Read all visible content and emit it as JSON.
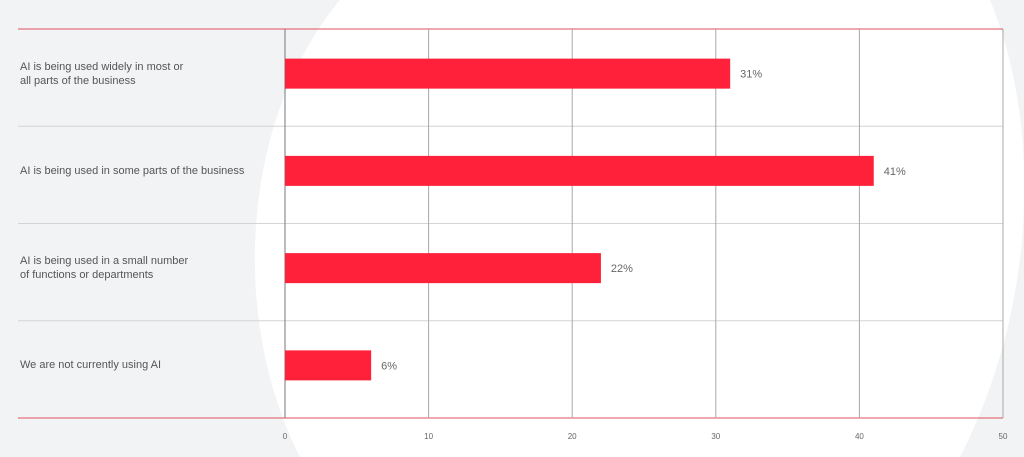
{
  "chart_data": {
    "type": "hbar",
    "categories": [
      "AI is being used widely in most or\nall parts of the business",
      "AI is being used in some parts of the business",
      "AI is being used in a small number\nof functions or departments",
      "We are not currently using AI"
    ],
    "values": [
      31,
      41,
      22,
      6
    ],
    "value_labels": [
      "31%",
      "41%",
      "22%",
      "6%"
    ],
    "color": "#ff2139",
    "xlim": [
      0,
      50
    ],
    "xticks": [
      0,
      10,
      20,
      30,
      40,
      50
    ],
    "grid": true
  }
}
